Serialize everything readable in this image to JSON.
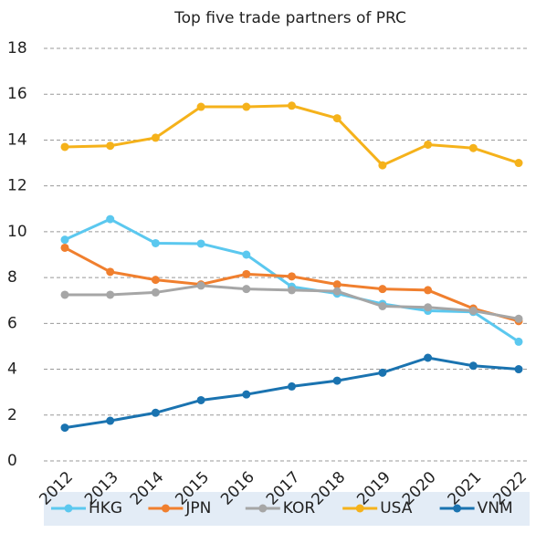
{
  "chart_data": {
    "type": "line",
    "title": "Top five trade partners of PRC",
    "categories": [
      "2012",
      "2013",
      "2014",
      "2015",
      "2016",
      "2017",
      "2018",
      "2019",
      "2020",
      "2021",
      "2022"
    ],
    "series": [
      {
        "name": "HKG",
        "color": "#5bc8ef",
        "values": [
          9.65,
          10.55,
          9.5,
          9.48,
          9.0,
          7.6,
          7.3,
          6.85,
          6.55,
          6.5,
          5.2
        ]
      },
      {
        "name": "JPN",
        "color": "#f07f2e",
        "values": [
          9.3,
          8.25,
          7.9,
          7.7,
          8.15,
          8.05,
          7.7,
          7.5,
          7.45,
          6.65,
          6.1
        ]
      },
      {
        "name": "KOR",
        "color": "#a6a6a6",
        "values": [
          7.25,
          7.25,
          7.35,
          7.65,
          7.5,
          7.45,
          7.4,
          6.75,
          6.7,
          6.55,
          6.2
        ]
      },
      {
        "name": "USA",
        "color": "#f5b21b",
        "values": [
          13.7,
          13.75,
          14.1,
          15.45,
          15.45,
          15.5,
          14.95,
          12.9,
          13.8,
          13.65,
          13.0
        ]
      },
      {
        "name": "VNM",
        "color": "#1a73b0",
        "values": [
          1.45,
          1.75,
          2.1,
          2.65,
          2.9,
          3.25,
          3.5,
          3.85,
          4.5,
          4.15,
          4.0
        ]
      }
    ],
    "ylim": [
      0,
      18
    ],
    "yticks": [
      0,
      2,
      4,
      6,
      8,
      10,
      12,
      14,
      16,
      18
    ],
    "grid": true,
    "legend": "bottom"
  }
}
